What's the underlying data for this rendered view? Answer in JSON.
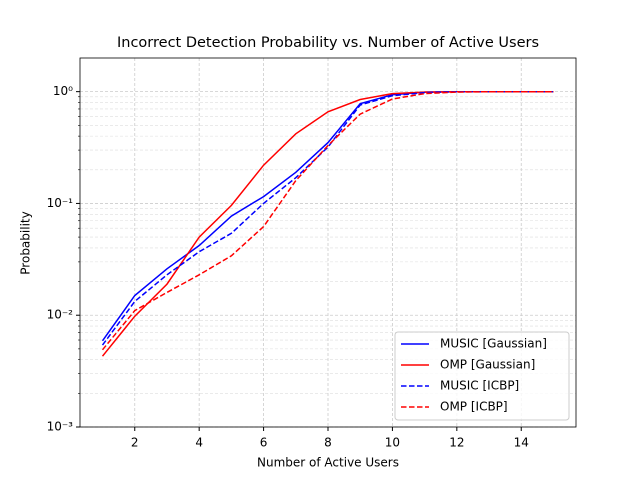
{
  "chart_data": {
    "type": "line",
    "title": "Incorrect Detection Probability vs. Number of Active Users",
    "x_label": "Number of Active Users",
    "y_label": "Probability",
    "x": [
      1,
      2,
      3,
      4,
      5,
      6,
      7,
      8,
      9,
      10,
      11,
      12,
      13,
      14,
      15
    ],
    "series": [
      {
        "name": "MUSIC [Gaussian]",
        "color": "#0000ff",
        "dashed": false,
        "values": [
          0.0059,
          0.015,
          0.026,
          0.042,
          0.077,
          0.115,
          0.19,
          0.35,
          0.78,
          0.94,
          0.99,
          1.0,
          1.0,
          1.0,
          1.0
        ]
      },
      {
        "name": "OMP [Gaussian]",
        "color": "#ff0000",
        "dashed": false,
        "values": [
          0.0043,
          0.0098,
          0.019,
          0.05,
          0.096,
          0.22,
          0.42,
          0.66,
          0.85,
          0.96,
          0.99,
          1.0,
          1.0,
          1.0,
          1.0
        ]
      },
      {
        "name": "MUSIC [ICBP]",
        "color": "#0000ff",
        "dashed": true,
        "values": [
          0.0054,
          0.0133,
          0.023,
          0.037,
          0.054,
          0.1,
          0.17,
          0.32,
          0.76,
          0.92,
          0.98,
          1.0,
          1.0,
          1.0,
          1.0
        ]
      },
      {
        "name": "OMP [ICBP]",
        "color": "#ff0000",
        "dashed": true,
        "values": [
          0.0049,
          0.011,
          0.016,
          0.023,
          0.034,
          0.062,
          0.16,
          0.33,
          0.63,
          0.86,
          0.96,
          0.99,
          1.0,
          1.0,
          1.0
        ]
      }
    ],
    "xlim": [
      0.3,
      15.7
    ],
    "xticks": [
      2,
      4,
      6,
      8,
      10,
      12,
      14
    ],
    "ylim": [
      0.001,
      2
    ],
    "log_y": true,
    "yticks": [
      {
        "value": 0.001,
        "label": "10⁻³"
      },
      {
        "value": 0.01,
        "label": "10⁻²"
      },
      {
        "value": 0.1,
        "label": "10⁻¹"
      },
      {
        "value": 1,
        "label": "10⁰"
      }
    ],
    "yminorticks": [
      0.002,
      0.003,
      0.004,
      0.005,
      0.006,
      0.007,
      0.008,
      0.009,
      0.02,
      0.03,
      0.04,
      0.05,
      0.06,
      0.07,
      0.08,
      0.09,
      0.2,
      0.3,
      0.4,
      0.5,
      0.6,
      0.7,
      0.8,
      0.9
    ],
    "grid": true,
    "legend_position": "lower right"
  }
}
